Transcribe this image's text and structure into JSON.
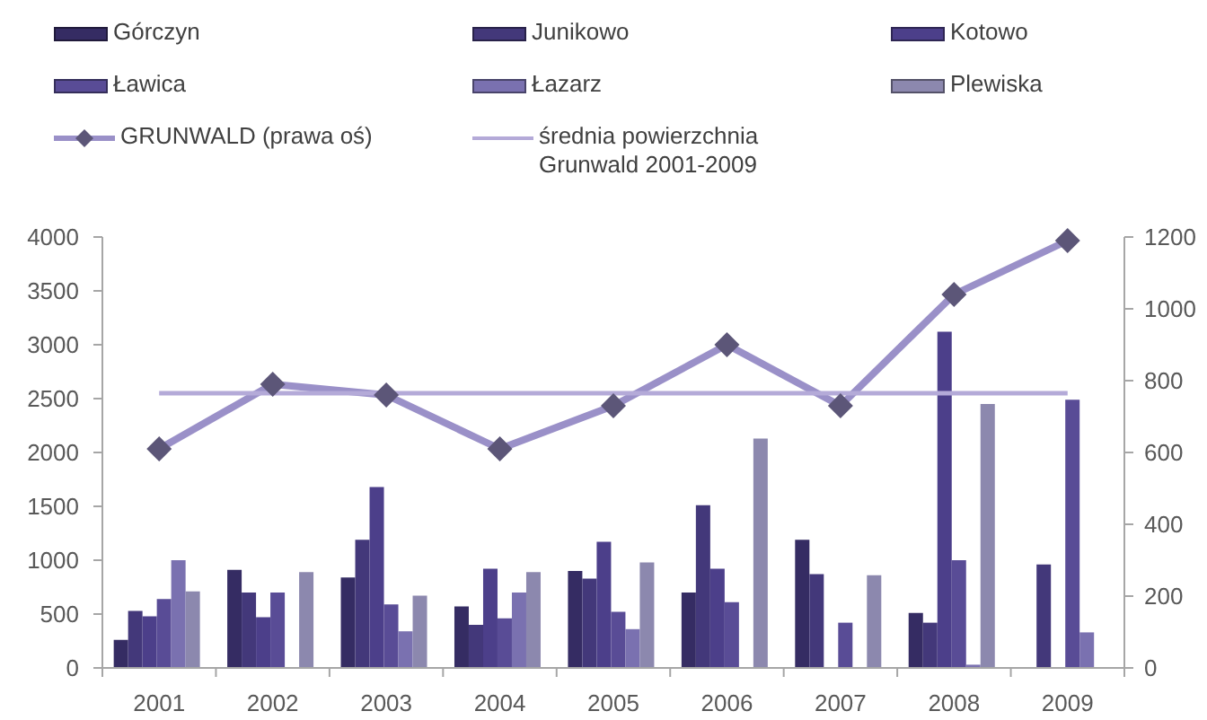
{
  "chart_data": {
    "type": "bar",
    "categories": [
      "2001",
      "2002",
      "2003",
      "2004",
      "2005",
      "2006",
      "2007",
      "2008",
      "2009"
    ],
    "series": [
      {
        "name": "Górczyn",
        "color": "#352c63",
        "values": [
          260,
          910,
          840,
          570,
          900,
          700,
          1190,
          510,
          null
        ]
      },
      {
        "name": "Junikowo",
        "color": "#43387a",
        "values": [
          530,
          700,
          1190,
          400,
          830,
          1510,
          870,
          420,
          960
        ]
      },
      {
        "name": "Kotowo",
        "color": "#4c3f8a",
        "values": [
          480,
          470,
          1680,
          920,
          1170,
          920,
          null,
          3120,
          null
        ]
      },
      {
        "name": "Ławica",
        "color": "#594c96",
        "values": [
          640,
          700,
          590,
          460,
          520,
          610,
          420,
          1000,
          2490
        ]
      },
      {
        "name": "Łazarz",
        "color": "#7a71b0",
        "values": [
          1000,
          null,
          340,
          700,
          360,
          null,
          null,
          30,
          330
        ]
      },
      {
        "name": "Plewiska",
        "color": "#8c88ae",
        "values": [
          710,
          890,
          670,
          890,
          980,
          2130,
          860,
          2450,
          null
        ]
      },
      {
        "name": "GRUNWALD (prawa oś)",
        "type": "line",
        "axis": "y2",
        "marker": "diamond",
        "color": "#9a90c8",
        "values": [
          610,
          790,
          760,
          610,
          730,
          900,
          730,
          1040,
          1190
        ]
      },
      {
        "name": "średnia powierzchnia Grunwald 2001-2009",
        "type": "line",
        "axis": "y2",
        "marker": "none",
        "color": "#b4aad8",
        "values": [
          765,
          765,
          765,
          765,
          765,
          765,
          765,
          765,
          765
        ]
      }
    ],
    "ylim": [
      0,
      4000
    ],
    "yticks": [
      0,
      500,
      1000,
      1500,
      2000,
      2500,
      3000,
      3500,
      4000
    ],
    "y2lim": [
      0,
      1200
    ],
    "y2ticks": [
      0,
      200,
      400,
      600,
      800,
      1000,
      1200
    ],
    "legend": "top"
  }
}
